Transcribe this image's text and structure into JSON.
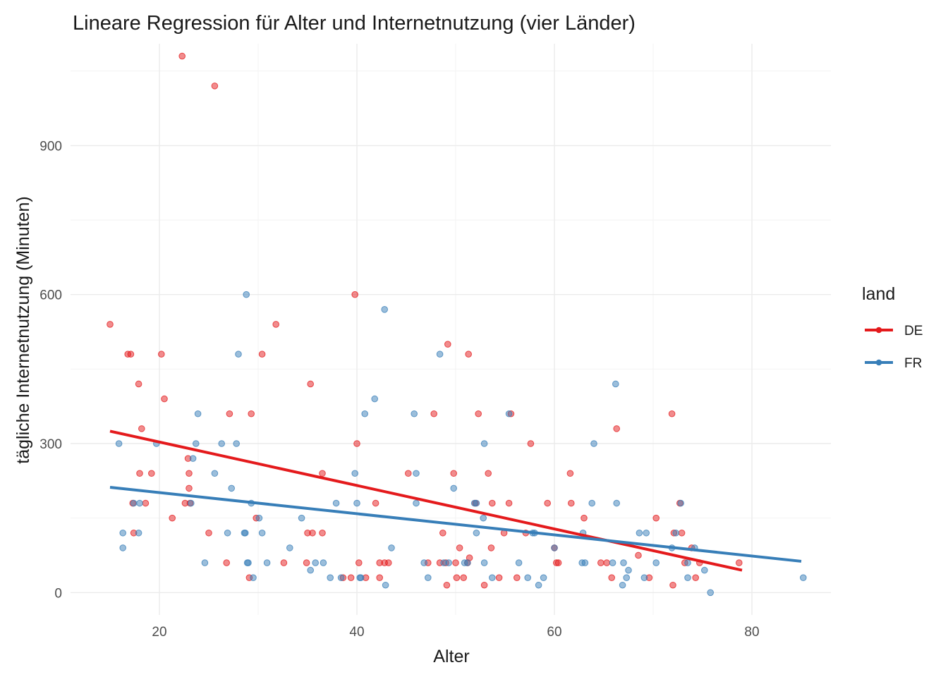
{
  "chart_data": {
    "type": "scatter",
    "title": "Lineare Regression für Alter und Internetnutzung (vier Länder)",
    "xlabel": "Alter",
    "ylabel": "tägliche Internetnutzung (Minuten)",
    "xlim": [
      11,
      88
    ],
    "ylim": [
      -45,
      1105
    ],
    "x_ticks": [
      20,
      40,
      60,
      80
    ],
    "y_ticks": [
      0,
      300,
      600,
      900
    ],
    "grid": true,
    "legend": {
      "title": "land",
      "position": "right"
    },
    "series": [
      {
        "name": "DE",
        "color": "#E41A1C",
        "regression": [
          [
            15,
            325
          ],
          [
            79,
            45
          ]
        ],
        "points": [
          [
            15,
            540
          ],
          [
            16.8,
            480
          ],
          [
            17.1,
            480
          ],
          [
            17.3,
            180
          ],
          [
            17.4,
            120
          ],
          [
            17.9,
            420
          ],
          [
            18.0,
            240
          ],
          [
            18.2,
            330
          ],
          [
            18.6,
            180
          ],
          [
            19.2,
            240
          ],
          [
            20.2,
            480
          ],
          [
            20.5,
            390
          ],
          [
            21.3,
            150
          ],
          [
            22.3,
            1080
          ],
          [
            22.6,
            180
          ],
          [
            22.9,
            270
          ],
          [
            23.0,
            240
          ],
          [
            23.0,
            210
          ],
          [
            23.1,
            180
          ],
          [
            25.0,
            120
          ],
          [
            25.6,
            1020
          ],
          [
            26.8,
            60
          ],
          [
            27.1,
            360
          ],
          [
            29.1,
            30
          ],
          [
            29.3,
            360
          ],
          [
            29.8,
            150
          ],
          [
            30.4,
            480
          ],
          [
            31.8,
            540
          ],
          [
            32.6,
            60
          ],
          [
            34.9,
            60
          ],
          [
            35.0,
            120
          ],
          [
            35.3,
            420
          ],
          [
            35.5,
            120
          ],
          [
            36.5,
            240
          ],
          [
            36.5,
            120
          ],
          [
            38.6,
            30
          ],
          [
            39.4,
            30
          ],
          [
            39.8,
            600
          ],
          [
            40.0,
            300
          ],
          [
            40.2,
            60
          ],
          [
            40.9,
            30
          ],
          [
            41.9,
            180
          ],
          [
            42.3,
            60
          ],
          [
            42.3,
            30
          ],
          [
            42.8,
            60
          ],
          [
            43.2,
            60
          ],
          [
            45.2,
            240
          ],
          [
            47.2,
            60
          ],
          [
            47.8,
            360
          ],
          [
            48.4,
            60
          ],
          [
            48.7,
            120
          ],
          [
            49.0,
            60
          ],
          [
            49.1,
            15
          ],
          [
            49.2,
            500
          ],
          [
            49.8,
            240
          ],
          [
            50.0,
            60
          ],
          [
            50.1,
            30
          ],
          [
            50.4,
            90
          ],
          [
            50.8,
            30
          ],
          [
            51.2,
            60
          ],
          [
            51.3,
            480
          ],
          [
            51.4,
            70
          ],
          [
            52.0,
            180
          ],
          [
            52.3,
            360
          ],
          [
            52.9,
            15
          ],
          [
            53.3,
            240
          ],
          [
            53.6,
            90
          ],
          [
            53.7,
            180
          ],
          [
            54.4,
            30
          ],
          [
            54.9,
            120
          ],
          [
            55.4,
            180
          ],
          [
            55.6,
            360
          ],
          [
            56.2,
            30
          ],
          [
            57.1,
            120
          ],
          [
            57.6,
            300
          ],
          [
            59.3,
            180
          ],
          [
            60.0,
            90
          ],
          [
            60.2,
            60
          ],
          [
            60.4,
            60
          ],
          [
            61.6,
            240
          ],
          [
            61.7,
            180
          ],
          [
            63.0,
            150
          ],
          [
            64.7,
            60
          ],
          [
            65.3,
            60
          ],
          [
            65.8,
            30
          ],
          [
            66.3,
            330
          ],
          [
            68.5,
            75
          ],
          [
            69.6,
            30
          ],
          [
            70.3,
            150
          ],
          [
            71.9,
            360
          ],
          [
            72.0,
            15
          ],
          [
            72.1,
            120
          ],
          [
            72.7,
            180
          ],
          [
            72.9,
            120
          ],
          [
            73.2,
            60
          ],
          [
            73.9,
            90
          ],
          [
            74.3,
            30
          ],
          [
            74.7,
            60
          ],
          [
            78.7,
            60
          ]
        ]
      },
      {
        "name": "FR",
        "color": "#377EB8",
        "regression": [
          [
            15,
            212
          ],
          [
            85,
            63
          ]
        ],
        "points": [
          [
            15.9,
            300
          ],
          [
            16.3,
            120
          ],
          [
            16.3,
            90
          ],
          [
            17.4,
            180
          ],
          [
            17.9,
            120
          ],
          [
            18.0,
            180
          ],
          [
            19.7,
            300
          ],
          [
            23.2,
            180
          ],
          [
            23.4,
            270
          ],
          [
            23.7,
            300
          ],
          [
            23.9,
            360
          ],
          [
            24.6,
            60
          ],
          [
            25.6,
            240
          ],
          [
            26.3,
            300
          ],
          [
            26.9,
            120
          ],
          [
            27.3,
            210
          ],
          [
            27.8,
            300
          ],
          [
            28.0,
            480
          ],
          [
            28.6,
            120
          ],
          [
            28.7,
            120
          ],
          [
            28.8,
            600
          ],
          [
            28.9,
            60
          ],
          [
            29.0,
            60
          ],
          [
            29.3,
            180
          ],
          [
            29.5,
            30
          ],
          [
            30.1,
            150
          ],
          [
            30.4,
            120
          ],
          [
            30.9,
            60
          ],
          [
            33.2,
            90
          ],
          [
            34.4,
            150
          ],
          [
            35.3,
            45
          ],
          [
            35.8,
            60
          ],
          [
            36.6,
            60
          ],
          [
            37.3,
            30
          ],
          [
            37.9,
            180
          ],
          [
            38.4,
            30
          ],
          [
            39.8,
            240
          ],
          [
            40.0,
            180
          ],
          [
            40.3,
            30
          ],
          [
            40.4,
            30
          ],
          [
            40.8,
            360
          ],
          [
            41.8,
            390
          ],
          [
            42.8,
            570
          ],
          [
            42.9,
            15
          ],
          [
            43.5,
            90
          ],
          [
            45.8,
            360
          ],
          [
            46.0,
            180
          ],
          [
            46.0,
            240
          ],
          [
            46.8,
            60
          ],
          [
            47.2,
            30
          ],
          [
            48.4,
            480
          ],
          [
            48.8,
            60
          ],
          [
            49.3,
            60
          ],
          [
            49.8,
            210
          ],
          [
            50.9,
            60
          ],
          [
            51.2,
            60
          ],
          [
            51.9,
            180
          ],
          [
            52.1,
            180
          ],
          [
            52.1,
            120
          ],
          [
            52.8,
            150
          ],
          [
            52.9,
            60
          ],
          [
            52.9,
            300
          ],
          [
            53.7,
            30
          ],
          [
            55.4,
            360
          ],
          [
            56.4,
            60
          ],
          [
            57.3,
            30
          ],
          [
            57.8,
            120
          ],
          [
            58.0,
            120
          ],
          [
            58.4,
            15
          ],
          [
            58.9,
            30
          ],
          [
            60.0,
            90
          ],
          [
            62.8,
            60
          ],
          [
            62.9,
            120
          ],
          [
            63.1,
            60
          ],
          [
            63.8,
            180
          ],
          [
            64.0,
            300
          ],
          [
            65.9,
            60
          ],
          [
            66.2,
            420
          ],
          [
            66.3,
            180
          ],
          [
            66.9,
            15
          ],
          [
            67.0,
            60
          ],
          [
            67.3,
            30
          ],
          [
            67.5,
            45
          ],
          [
            68.6,
            120
          ],
          [
            69.1,
            30
          ],
          [
            69.3,
            120
          ],
          [
            70.3,
            60
          ],
          [
            71.9,
            90
          ],
          [
            72.3,
            120
          ],
          [
            72.8,
            180
          ],
          [
            73.5,
            30
          ],
          [
            73.5,
            60
          ],
          [
            74.2,
            90
          ],
          [
            75.2,
            45
          ],
          [
            75.8,
            0
          ],
          [
            85.2,
            30
          ]
        ]
      }
    ]
  }
}
